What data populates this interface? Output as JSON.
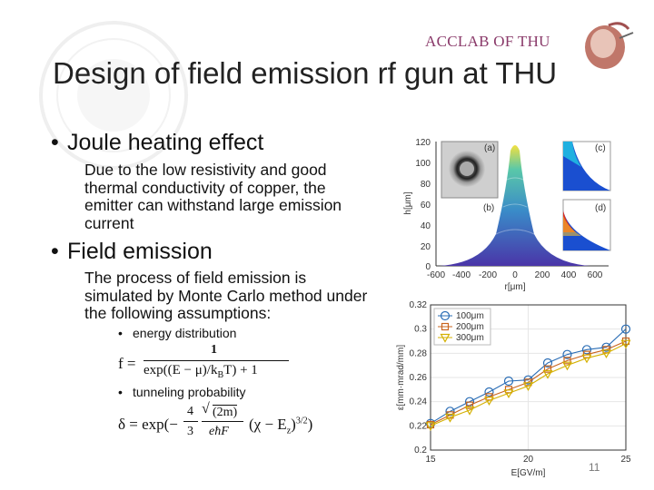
{
  "header": {
    "lab": "ACCLAB OF THU",
    "title": "Design of field emission rf gun at THU"
  },
  "colors": {
    "lab_text": "#8a3a6a",
    "seal": "#f2f2f2"
  },
  "bullets": {
    "joule": {
      "title": "Joule heating effect",
      "lines": [
        "Due to the low resistivity and good",
        "thermal conductivity of copper, the",
        "emitter can withstand large emission",
        "current"
      ]
    },
    "field": {
      "title": "Field emission",
      "lines": [
        "The process of field emission is",
        "simulated by Monte Carlo method under",
        "the following assumptions:"
      ],
      "sub1": "energy distribution",
      "sub2": "tunneling probability"
    }
  },
  "equations": {
    "f_lhs": "f =",
    "f_num": "1",
    "f_den": "exp((E − μ)/k",
    "f_sub": "B",
    "f_den_end": "T) + 1",
    "d_lhs": "δ = exp(−",
    "d_frac_num": "4",
    "d_frac_den": "3",
    "d_sqrt": "(2m)",
    "d_den2": "eħF",
    "d_rest": "(χ − E",
    "d_sub": "z",
    "d_end": ")",
    "d_exp": "3/2",
    ")": ")"
  },
  "figure_top": {
    "ylabel": "h[μm]",
    "xlabel": "r[μm]",
    "yticks": [
      "120",
      "100",
      "80",
      "60",
      "40",
      "20",
      "0"
    ],
    "xticks": [
      "-600",
      "-400",
      "-200",
      "0",
      "200",
      "400",
      "600"
    ],
    "panels": {
      "a": "(a)",
      "b": "(b)",
      "c": "(c)",
      "d": "(d)"
    }
  },
  "chart_data": {
    "type": "line",
    "xlabel": "E[GV/m]",
    "ylabel": "ε[mm·mrad/mm]",
    "xlim": [
      15,
      25
    ],
    "ylim": [
      0.2,
      0.32
    ],
    "xticks": [
      15,
      20,
      25
    ],
    "yticks": [
      0.2,
      0.22,
      0.24,
      0.26,
      0.28,
      0.3,
      0.32
    ],
    "ytick_labels": [
      "0.2",
      "0.22",
      "0.24",
      "0.26",
      "0.28",
      "0.3",
      "0.32"
    ],
    "legend_position": "top-left",
    "x": [
      15,
      16,
      17,
      18,
      19,
      20,
      21,
      22,
      23,
      24,
      25
    ],
    "series": [
      {
        "name": "100μm",
        "color": "#2a6db5",
        "marker": "circle",
        "values": [
          0.222,
          0.232,
          0.24,
          0.248,
          0.257,
          0.258,
          0.272,
          0.279,
          0.283,
          0.285,
          0.3
        ]
      },
      {
        "name": "200μm",
        "color": "#c8641e",
        "marker": "square",
        "values": [
          0.221,
          0.229,
          0.237,
          0.244,
          0.25,
          0.256,
          0.267,
          0.274,
          0.279,
          0.283,
          0.29
        ]
      },
      {
        "name": "300μm",
        "color": "#d4b000",
        "marker": "triangle",
        "values": [
          0.22,
          0.227,
          0.233,
          0.241,
          0.247,
          0.253,
          0.263,
          0.27,
          0.276,
          0.28,
          0.288
        ]
      }
    ],
    "page_number": "11"
  }
}
